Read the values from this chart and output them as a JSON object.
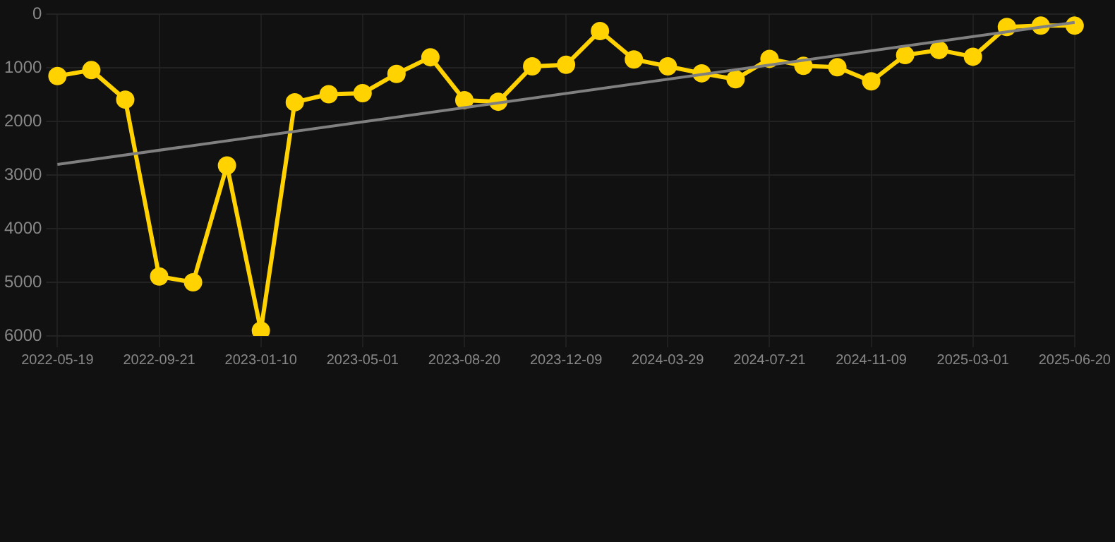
{
  "chart_data": {
    "type": "line",
    "categories": [
      "2022-05-19",
      null,
      null,
      "2022-09-21",
      null,
      null,
      "2023-01-10",
      null,
      null,
      "2023-05-01",
      null,
      null,
      "2023-08-20",
      null,
      null,
      "2023-12-09",
      null,
      null,
      "2024-03-29",
      null,
      null,
      "2024-07-21",
      null,
      null,
      "2024-11-09",
      null,
      null,
      "2025-03-01",
      null,
      null,
      "2025-06-20"
    ],
    "series": [
      {
        "color": "#ffd200",
        "marker": "circle",
        "values": [
          1150,
          1040,
          1590,
          4890,
          5000,
          2820,
          5900,
          1640,
          1490,
          1470,
          1110,
          800,
          1600,
          1630,
          970,
          940,
          310,
          840,
          970,
          1100,
          1210,
          830,
          960,
          985,
          1250,
          760,
          665,
          790,
          235,
          210,
          210
        ]
      },
      {
        "color": "#808080",
        "marker": "none",
        "values": [
          2800,
          null,
          null,
          null,
          null,
          null,
          null,
          null,
          null,
          null,
          null,
          null,
          null,
          null,
          null,
          null,
          null,
          null,
          null,
          null,
          null,
          null,
          null,
          null,
          null,
          null,
          null,
          null,
          null,
          null,
          150
        ]
      }
    ],
    "ylim": [
      6000,
      0
    ],
    "yticks": [
      0,
      1000,
      2000,
      3000,
      4000,
      5000,
      6000
    ],
    "grid": true,
    "legend": false
  }
}
